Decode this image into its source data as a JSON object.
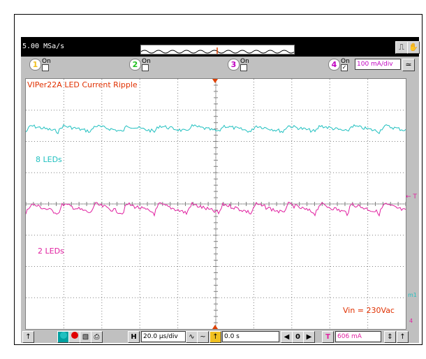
{
  "header": {
    "sample_rate": "5.00 MSa/s"
  },
  "channels": [
    {
      "num": "1",
      "label": "On",
      "color": "#f0c020",
      "checked": false
    },
    {
      "num": "2",
      "label": "On",
      "color": "#20c020",
      "checked": false
    },
    {
      "num": "3",
      "label": "On",
      "color": "#c000c0",
      "checked": false
    },
    {
      "num": "4",
      "label": "On",
      "color": "#c000c0",
      "checked": true
    }
  ],
  "ch4_scale": "100 mA/div",
  "plot": {
    "title": "VIPer22A LED Current Ripple",
    "trace1_label": "8 LEDs",
    "trace2_label": "2 LEDs",
    "vin_label": "Vin = 230Vac",
    "trigger_marker": "← T",
    "ref_marker_m1": "m1",
    "ref_marker_4": "4",
    "colors": {
      "trace1": "#20c0c0",
      "trace2": "#e020a0",
      "title": "#e03000",
      "grid": "#808080"
    }
  },
  "bottom": {
    "h_label": "H",
    "timebase": "20.0 µs/div",
    "delay": "0.0 s",
    "t_label": "T",
    "trigger_level": "606 mA"
  },
  "icons": [
    "pan-icon",
    "pointer-icon",
    "record-icon",
    "stop-icon",
    "save-icon",
    "print-icon"
  ]
}
